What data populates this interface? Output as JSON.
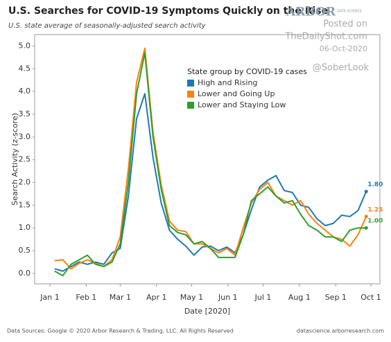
{
  "chart_data": {
    "type": "line",
    "title": "U.S. Searches for COVID-19 Symptoms Quickly on the Rise",
    "subtitle": "U.S. state average of seasonally-adjusted search activity",
    "logo": "ARBOR",
    "logo_sub": "DATA SCIENCE",
    "posted_on": "Posted on",
    "site": "TheDailyShot.com",
    "posted_date": "06-Oct-2020",
    "handle": "@SoberLook",
    "legend_title": "State group by COVID-19 cases",
    "y_label": "Search Activity (z-score)",
    "x_label": "Date [2020]",
    "source": "Data Sources: Google © 2020 Arbor Research & Trading, LLC. All Rights Reserved",
    "source_url": "datascience.arborresearch.com",
    "grid": false,
    "x": [
      "2020-01-05",
      "2020-01-12",
      "2020-01-19",
      "2020-01-26",
      "2020-02-02",
      "2020-02-09",
      "2020-02-16",
      "2020-02-23",
      "2020-03-01",
      "2020-03-08",
      "2020-03-15",
      "2020-03-22",
      "2020-03-29",
      "2020-04-05",
      "2020-04-12",
      "2020-04-19",
      "2020-04-26",
      "2020-05-03",
      "2020-05-10",
      "2020-05-17",
      "2020-05-24",
      "2020-05-31",
      "2020-06-07",
      "2020-06-14",
      "2020-06-21",
      "2020-06-28",
      "2020-07-05",
      "2020-07-12",
      "2020-07-19",
      "2020-07-26",
      "2020-08-02",
      "2020-08-09",
      "2020-08-16",
      "2020-08-23",
      "2020-08-30",
      "2020-09-06",
      "2020-09-13",
      "2020-09-20",
      "2020-09-27"
    ],
    "xlim": [
      "2020-01-01",
      "2020-10-01"
    ],
    "xticks": [
      {
        "value": "2020-01-01",
        "label": "Jan 1"
      },
      {
        "value": "2020-02-01",
        "label": "Feb 1"
      },
      {
        "value": "2020-03-01",
        "label": "Mar 1"
      },
      {
        "value": "2020-04-01",
        "label": "Apr 1"
      },
      {
        "value": "2020-05-01",
        "label": "May 1"
      },
      {
        "value": "2020-06-01",
        "label": "Jun 1"
      },
      {
        "value": "2020-07-01",
        "label": "Jul 1"
      },
      {
        "value": "2020-08-01",
        "label": "Aug 1"
      },
      {
        "value": "2020-09-01",
        "label": "Sep 1"
      },
      {
        "value": "2020-10-01",
        "label": "Oct 1"
      }
    ],
    "ylim": [
      -0.23,
      5.25
    ],
    "yticks": [
      {
        "value": 0,
        "label": "0.0"
      },
      {
        "value": 0.5,
        "label": "0.5"
      },
      {
        "value": 1,
        "label": "1.0"
      },
      {
        "value": 1.5,
        "label": "1.5"
      },
      {
        "value": 2,
        "label": "2.0"
      },
      {
        "value": 2.5,
        "label": "2.5"
      },
      {
        "value": 3,
        "label": "3.0"
      },
      {
        "value": 3.5,
        "label": "3.5"
      },
      {
        "value": 4,
        "label": "4.0"
      },
      {
        "value": 4.5,
        "label": "4.5"
      },
      {
        "value": 5,
        "label": "5.0"
      }
    ],
    "series": [
      {
        "name": "High and Rising",
        "color": "#1f77b4",
        "values": [
          0.1,
          0.05,
          0.15,
          0.25,
          0.2,
          0.25,
          0.2,
          0.45,
          0.55,
          1.7,
          3.4,
          3.95,
          2.55,
          1.55,
          0.95,
          0.75,
          0.6,
          0.4,
          0.58,
          0.6,
          0.5,
          0.58,
          0.45,
          0.85,
          1.4,
          1.9,
          2.05,
          2.15,
          1.82,
          1.78,
          1.5,
          1.45,
          1.2,
          1.05,
          1.1,
          1.28,
          1.25,
          1.38,
          1.8
        ],
        "value_labels": [
          null,
          null,
          null,
          null,
          null,
          null,
          null,
          null,
          null,
          null,
          null,
          null,
          null,
          null,
          null,
          null,
          null,
          null,
          null,
          null,
          null,
          null,
          null,
          null,
          null,
          null,
          null,
          null,
          null,
          null,
          null,
          null,
          null,
          null,
          null,
          null,
          null,
          null,
          "1.80"
        ]
      },
      {
        "name": "Lower and Going Up",
        "color": "#ff7f0e",
        "values": [
          0.28,
          0.3,
          0.1,
          0.22,
          0.3,
          0.22,
          0.15,
          0.3,
          0.8,
          2.3,
          4.2,
          4.95,
          3.1,
          1.95,
          1.15,
          0.95,
          0.92,
          0.65,
          0.65,
          0.55,
          0.45,
          0.55,
          0.4,
          1.0,
          1.55,
          1.85,
          2.0,
          1.7,
          1.6,
          1.5,
          1.6,
          1.3,
          1.1,
          0.95,
          0.8,
          0.75,
          0.6,
          0.85,
          1.25
        ],
        "value_labels": [
          null,
          null,
          null,
          null,
          null,
          null,
          null,
          null,
          null,
          null,
          null,
          null,
          null,
          null,
          null,
          null,
          null,
          null,
          null,
          null,
          null,
          null,
          null,
          null,
          null,
          null,
          null,
          null,
          null,
          null,
          null,
          null,
          null,
          null,
          null,
          null,
          null,
          null,
          "1.25"
        ]
      },
      {
        "name": "Lower and Staying Low",
        "color": "#2ca02c",
        "values": [
          0.05,
          -0.05,
          0.2,
          0.3,
          0.4,
          0.2,
          0.15,
          0.25,
          0.65,
          2.0,
          3.95,
          4.85,
          3.0,
          1.85,
          1.05,
          0.9,
          0.85,
          0.65,
          0.7,
          0.55,
          0.35,
          0.35,
          0.35,
          0.85,
          1.6,
          1.75,
          1.9,
          1.7,
          1.55,
          1.6,
          1.3,
          1.05,
          0.95,
          0.8,
          0.8,
          0.7,
          0.95,
          1.0,
          1.0
        ],
        "value_labels": [
          null,
          null,
          null,
          null,
          null,
          null,
          null,
          null,
          null,
          null,
          null,
          null,
          null,
          null,
          null,
          null,
          null,
          null,
          null,
          null,
          null,
          null,
          null,
          null,
          null,
          null,
          null,
          null,
          null,
          null,
          null,
          null,
          null,
          null,
          null,
          null,
          null,
          null,
          "1.00"
        ]
      }
    ]
  }
}
